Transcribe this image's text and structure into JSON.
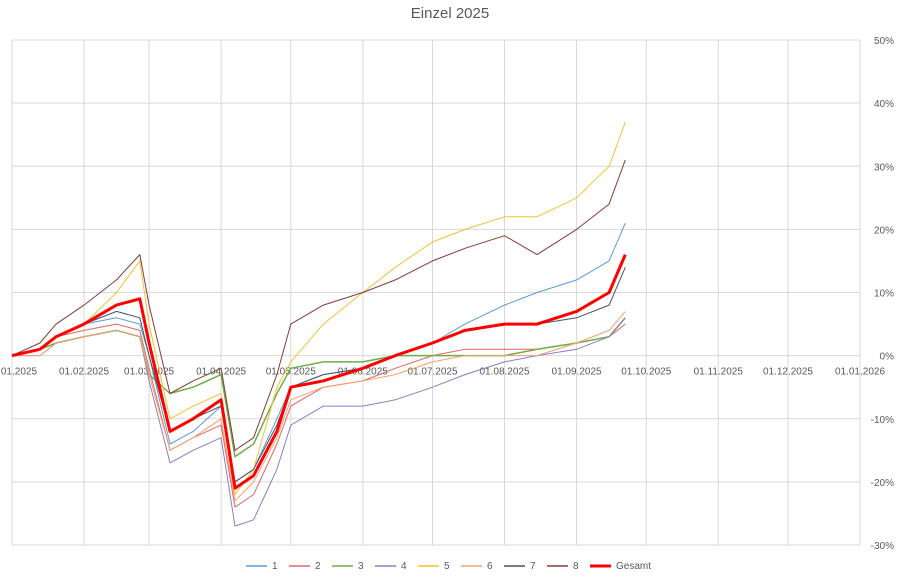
{
  "chart_data": {
    "type": "line",
    "title": "Einzel 2025",
    "xlabel": "",
    "ylabel": "",
    "x_ticks": [
      "01.01.2025",
      "01.02.2025",
      "01.03.2025",
      "01.04.2025",
      "01.05.2025",
      "01.06.2025",
      "01.07.2025",
      "01.08.2025",
      "01.09.2025",
      "01.10.2025",
      "01.11.2025",
      "01.12.2025",
      "01.01.2026"
    ],
    "y_ticks": [
      "-30%",
      "-20%",
      "-10%",
      "0%",
      "10%",
      "20%",
      "30%",
      "40%",
      "50%"
    ],
    "ylim": [
      -30,
      50
    ],
    "xlim": [
      "01.01.2025",
      "01.01.2026"
    ],
    "grid": "vertical and horizontal",
    "legend_position": "bottom",
    "x": [
      "01.01.2025",
      "13.01.2025",
      "20.01.2025",
      "01.02.2025",
      "15.02.2025",
      "25.02.2025",
      "01.03.2025",
      "10.03.2025",
      "20.03.2025",
      "01.04.2025",
      "07.04.2025",
      "15.04.2025",
      "25.04.2025",
      "01.05.2025",
      "15.05.2025",
      "01.06.2025",
      "15.06.2025",
      "01.07.2025",
      "15.07.2025",
      "01.08.2025",
      "15.08.2025",
      "01.09.2025",
      "15.09.2025",
      "22.09.2025"
    ],
    "series": [
      {
        "name": "1",
        "color": "#5b9bd5",
        "width": 1,
        "values": [
          0,
          1,
          3,
          5,
          6,
          5,
          0,
          -14,
          -12,
          -8,
          -20,
          -18,
          -10,
          -5,
          -3,
          -2,
          0,
          2,
          5,
          8,
          10,
          12,
          15,
          21
        ]
      },
      {
        "name": "2",
        "color": "#e06666",
        "width": 1,
        "values": [
          0,
          1,
          3,
          4,
          5,
          4,
          -2,
          -15,
          -13,
          -11,
          -24,
          -22,
          -14,
          -8,
          -5,
          -4,
          -2,
          0,
          1,
          1,
          1,
          2,
          3,
          5
        ]
      },
      {
        "name": "3",
        "color": "#70ad47",
        "width": 1.5,
        "values": [
          0,
          1,
          2,
          3,
          4,
          3,
          -3,
          -6,
          -5,
          -3,
          -16,
          -14,
          -6,
          -2,
          -1,
          -1,
          0,
          0,
          0,
          0,
          1,
          2,
          3,
          6
        ]
      },
      {
        "name": "4",
        "color": "#8e7cc3",
        "width": 1,
        "values": [
          0,
          0,
          2,
          3,
          4,
          3,
          -4,
          -17,
          -15,
          -13,
          -27,
          -26,
          -18,
          -11,
          -8,
          -8,
          -7,
          -5,
          -3,
          -1,
          0,
          1,
          3,
          6
        ]
      },
      {
        "name": "5",
        "color": "#f1c232",
        "width": 1,
        "values": [
          0,
          1,
          3,
          5,
          10,
          15,
          5,
          -10,
          -8,
          -6,
          -22,
          -18,
          -5,
          -1,
          5,
          10,
          14,
          18,
          20,
          22,
          22,
          25,
          30,
          37
        ]
      },
      {
        "name": "6",
        "color": "#f4a26c",
        "width": 1,
        "values": [
          0,
          0,
          2,
          3,
          4,
          3,
          -3,
          -15,
          -13,
          -10,
          -23,
          -20,
          -13,
          -7,
          -5,
          -4,
          -3,
          -1,
          0,
          0,
          0,
          2,
          4,
          7
        ]
      },
      {
        "name": "7",
        "color": "#44546a",
        "width": 1,
        "values": [
          0,
          1,
          3,
          5,
          7,
          6,
          0,
          -12,
          -10,
          -8,
          -20,
          -18,
          -11,
          -5,
          -3,
          -2,
          0,
          2,
          4,
          5,
          5,
          6,
          8,
          14
        ]
      },
      {
        "name": "8",
        "color": "#843c39",
        "width": 1,
        "values": [
          0,
          2,
          5,
          8,
          12,
          16,
          8,
          -6,
          -4,
          -2,
          -15,
          -13,
          -3,
          5,
          8,
          10,
          12,
          15,
          17,
          19,
          16,
          20,
          24,
          31
        ]
      },
      {
        "name": "Gesamt",
        "color": "#ff0000",
        "width": 3,
        "values": [
          0,
          1,
          3,
          5,
          8,
          9,
          2,
          -12,
          -10,
          -7,
          -21,
          -19,
          -12,
          -5,
          -4,
          -2,
          0,
          2,
          4,
          5,
          5,
          7,
          10,
          16
        ]
      }
    ]
  }
}
